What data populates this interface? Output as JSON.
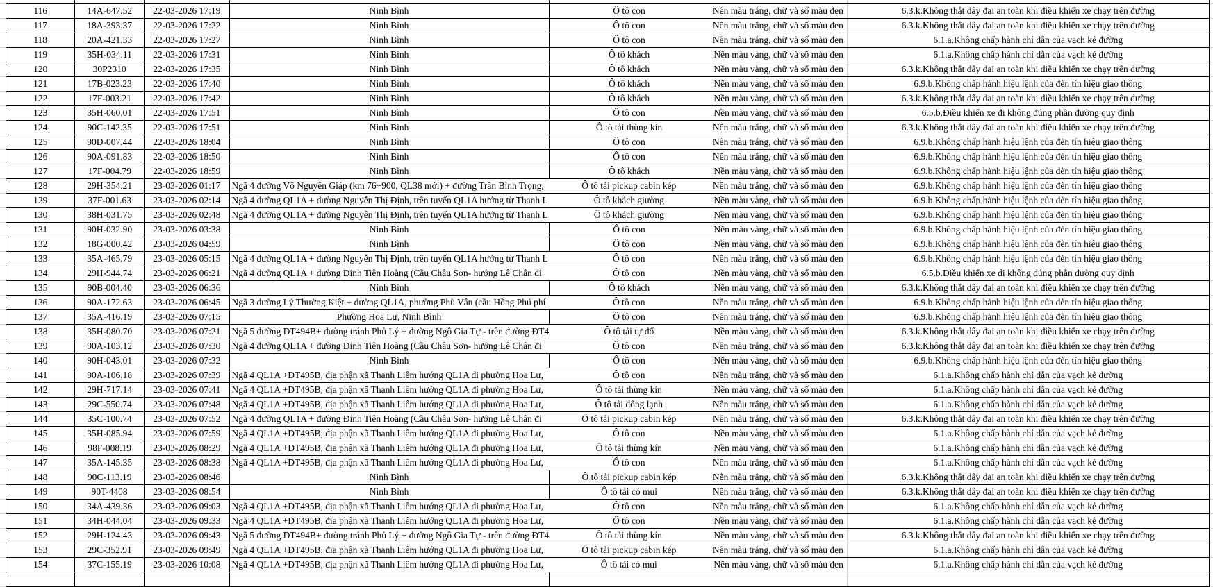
{
  "rows": [
    [
      "116",
      "14A-647.52",
      "22-03-2026 17:19",
      "Ninh Bình",
      "Ô tô con",
      "Nền màu trắng, chữ và số màu đen",
      "6.3.k.Không thắt dây đai an toàn khi điều khiển xe chạy trên đường"
    ],
    [
      "117",
      "18A-393.37",
      "22-03-2026 17:22",
      "Ninh Bình",
      "Ô tô con",
      "Nền màu trắng, chữ và số màu đen",
      "6.3.k.Không thắt dây đai an toàn khi điều khiển xe chạy trên đường"
    ],
    [
      "118",
      "20A-421.33",
      "22-03-2026 17:27",
      "Ninh Bình",
      "Ô tô con",
      "Nền màu trắng, chữ và số màu đen",
      "6.1.a.Không chấp hành chỉ dẫn của vạch kẻ đường"
    ],
    [
      "119",
      "35H-034.11",
      "22-03-2026 17:31",
      "Ninh Bình",
      "Ô tô khách",
      "Nền màu vàng, chữ và số màu đen",
      "6.1.a.Không chấp hành chỉ dẫn của vạch kẻ đường"
    ],
    [
      "120",
      "30P2310",
      "22-03-2026 17:35",
      "Ninh Bình",
      "Ô tô khách",
      "Nền màu vàng, chữ và số màu đen",
      "6.3.k.Không thắt dây đai an toàn khi điều khiển xe chạy trên đường"
    ],
    [
      "121",
      "17B-023.23",
      "22-03-2026 17:40",
      "Ninh Bình",
      "Ô tô khách",
      "Nền màu vàng, chữ và số màu đen",
      "6.9.b.Không chấp hành hiệu lệnh của đèn tín hiệu giao thông"
    ],
    [
      "122",
      "17F-003.21",
      "22-03-2026 17:42",
      "Ninh Bình",
      "Ô tô khách",
      "Nền màu vàng, chữ và số màu đen",
      "6.3.k.Không thắt dây đai an toàn khi điều khiển xe chạy trên đường"
    ],
    [
      "123",
      "35H-060.01",
      "22-03-2026 17:51",
      "Ninh Bình",
      "Ô tô con",
      "Nền màu vàng, chữ và số màu đen",
      "6.5.b.Điều khiển xe đi không đúng phần đường quy định"
    ],
    [
      "124",
      "90C-142.35",
      "22-03-2026 17:51",
      "Ninh Bình",
      "Ô tô tải thùng kín",
      "Nền màu trắng, chữ và số màu đen",
      "6.3.k.Không thắt dây đai an toàn khi điều khiển xe chạy trên đường"
    ],
    [
      "125",
      "90D-007.44",
      "22-03-2026 18:04",
      "Ninh Bình",
      "Ô tô con",
      "Nền màu trắng, chữ và số màu đen",
      "6.9.b.Không chấp hành hiệu lệnh của đèn tín hiệu giao thông"
    ],
    [
      "126",
      "90A-091.83",
      "22-03-2026 18:50",
      "Ninh Bình",
      "Ô tô con",
      "Nền màu trắng, chữ và số màu đen",
      "6.9.b.Không chấp hành hiệu lệnh của đèn tín hiệu giao thông"
    ],
    [
      "127",
      "17F-004.79",
      "22-03-2026 18:59",
      "Ninh Bình",
      "Ô tô khách",
      "Nền màu vàng, chữ và số màu đen",
      "6.9.b.Không chấp hành hiệu lệnh của đèn tín hiệu giao thông"
    ],
    [
      "128",
      "29H-354.21",
      "23-03-2026 01:17",
      "Ngã 4 đường Võ Nguyên Giáp (km 76+900, QL38 mới) + đường Trần Bình Trọng,",
      "Ô tô tải pickup cabin kép",
      "Nền màu trắng, chữ và số màu đen",
      "6.9.b.Không chấp hành hiệu lệnh của đèn tín hiệu giao thông"
    ],
    [
      "129",
      "37F-001.63",
      "23-03-2026 02:14",
      "Ngã 4 đường QL1A + đường Nguyễn Thị Định, trên tuyến QL1A hướng từ Thanh L",
      "Ô tô khách giường",
      "Nền màu vàng, chữ và số màu đen",
      "6.9.b.Không chấp hành hiệu lệnh của đèn tín hiệu giao thông"
    ],
    [
      "130",
      "38H-031.75",
      "23-03-2026 02:48",
      "Ngã 4 đường QL1A + đường Nguyễn Thị Định, trên tuyến QL1A hướng từ Thanh L",
      "Ô tô khách giường",
      "Nền màu vàng, chữ và số màu đen",
      "6.9.b.Không chấp hành hiệu lệnh của đèn tín hiệu giao thông"
    ],
    [
      "131",
      "90H-032.90",
      "23-03-2026 03:38",
      "Ninh Bình",
      "Ô tô con",
      "Nền màu vàng, chữ và số màu đen",
      "6.9.b.Không chấp hành hiệu lệnh của đèn tín hiệu giao thông"
    ],
    [
      "132",
      "18G-000.42",
      "23-03-2026 04:59",
      "Ninh Bình",
      "Ô tô con",
      "Nền màu vàng, chữ và số màu đen",
      "6.9.b.Không chấp hành hiệu lệnh của đèn tín hiệu giao thông"
    ],
    [
      "133",
      "35A-465.79",
      "23-03-2026 05:15",
      "Ngã 4 đường QL1A + đường Nguyễn Thị Định, trên tuyến QL1A hướng từ Thanh L",
      "Ô tô con",
      "Nền màu trắng, chữ và số màu đen",
      "6.9.b.Không chấp hành hiệu lệnh của đèn tín hiệu giao thông"
    ],
    [
      "134",
      "29H-944.74",
      "23-03-2026 06:21",
      "Ngã 4 đường QL1A + đường Đinh Tiên Hoàng (Cầu Châu Sơn- hướng Lê Chân đi",
      "Ô tô con",
      "Nền màu vàng, chữ và số màu đen",
      "6.5.b.Điều khiển xe đi không đúng phần đường quy định"
    ],
    [
      "135",
      "90B-004.40",
      "23-03-2026 06:36",
      "Ninh Bình",
      "Ô tô khách",
      "Nền màu vàng, chữ và số màu đen",
      "6.3.k.Không thắt dây đai an toàn khi điều khiển xe chạy trên đường"
    ],
    [
      "136",
      "90A-172.63",
      "23-03-2026 06:45",
      "Ngã 3 đường Lý Thường Kiệt + đường QL1A, phường Phù Vân (cầu Hồng Phú phí",
      "Ô tô con",
      "Nền màu trắng, chữ và số màu đen",
      "6.9.b.Không chấp hành hiệu lệnh của đèn tín hiệu giao thông"
    ],
    [
      "137",
      "35A-416.19",
      "23-03-2026 07:15",
      "Phường Hoa Lư, Ninh Bình",
      "Ô tô con",
      "Nền màu trắng, chữ và số màu đen",
      "6.9.b.Không chấp hành hiệu lệnh của đèn tín hiệu giao thông"
    ],
    [
      "138",
      "35H-080.70",
      "23-03-2026 07:21",
      "Ngã 5 đường DT494B+ đường tránh Phủ Lý + đường Ngô Gia Tự - trên đường ĐT4",
      "Ô tô tải tự đổ",
      "Nền màu vàng, chữ và số màu đen",
      "6.3.k.Không thắt dây đai an toàn khi điều khiển xe chạy trên đường"
    ],
    [
      "139",
      "90A-103.12",
      "23-03-2026 07:30",
      "Ngã 4 đường QL1A + đường Đinh Tiên Hoàng (Cầu Châu Sơn- hướng Lê Chân đi",
      "Ô tô con",
      "Nền màu trắng, chữ và số màu đen",
      "6.3.k.Không thắt dây đai an toàn khi điều khiển xe chạy trên đường"
    ],
    [
      "140",
      "90H-043.01",
      "23-03-2026 07:32",
      "Ninh Bình",
      "Ô tô con",
      "Nền màu vàng, chữ và số màu đen",
      "6.9.b.Không chấp hành hiệu lệnh của đèn tín hiệu giao thông"
    ],
    [
      "141",
      "90A-106.18",
      "23-03-2026 07:39",
      "Ngã 4 QL1A +DT495B, địa phận xã Thanh Liêm hướng QL1A đi phường Hoa Lư,",
      "Ô tô con",
      "Nền màu trắng, chữ và số màu đen",
      "6.1.a.Không chấp hành chỉ dẫn của vạch kẻ đường"
    ],
    [
      "142",
      "29H-717.14",
      "23-03-2026 07:41",
      "Ngã 4 QL1A +DT495B, địa phận xã Thanh Liêm hướng QL1A đi phường Hoa Lư,",
      "Ô tô tải thùng kín",
      "Nền màu vàng, chữ và số màu đen",
      "6.1.a.Không chấp hành chỉ dẫn của vạch kẻ đường"
    ],
    [
      "143",
      "29C-550.74",
      "23-03-2026 07:48",
      "Ngã 4 QL1A +DT495B, địa phận xã Thanh Liêm hướng QL1A đi phường Hoa Lư,",
      "Ô tô tải đông lạnh",
      "Nền màu trắng, chữ và số màu đen",
      "6.1.a.Không chấp hành chỉ dẫn của vạch kẻ đường"
    ],
    [
      "144",
      "35C-100.74",
      "23-03-2026 07:52",
      "Ngã 4 đường QL1A + đường Đinh Tiên Hoàng (Cầu Châu Sơn- hướng Lê Chân đi",
      "Ô tô tải pickup cabin kép",
      "Nền màu trắng, chữ và số màu đen",
      "6.3.k.Không thắt dây đai an toàn khi điều khiển xe chạy trên đường"
    ],
    [
      "145",
      "35H-085.94",
      "23-03-2026 07:59",
      "Ngã 4 QL1A +DT495B, địa phận xã Thanh Liêm hướng QL1A đi phường Hoa Lư,",
      "Ô tô con",
      "Nền màu vàng, chữ và số màu đen",
      "6.1.a.Không chấp hành chỉ dẫn của vạch kẻ đường"
    ],
    [
      "146",
      "98F-008.19",
      "23-03-2026 08:29",
      "Ngã 4 QL1A +DT495B, địa phận xã Thanh Liêm hướng QL1A đi phường Hoa Lư,",
      "Ô tô tải thùng kín",
      "Nền màu vàng, chữ và số màu đen",
      "6.1.a.Không chấp hành chỉ dẫn của vạch kẻ đường"
    ],
    [
      "147",
      "35A-145.35",
      "23-03-2026 08:38",
      "Ngã 4 QL1A +DT495B, địa phận xã Thanh Liêm hướng QL1A đi phường Hoa Lư,",
      "Ô tô con",
      "Nền màu trắng, chữ và số màu đen",
      "6.1.a.Không chấp hành chỉ dẫn của vạch kẻ đường"
    ],
    [
      "148",
      "90C-113.19",
      "23-03-2026 08:46",
      "Ninh Bình",
      "Ô tô tải pickup cabin kép",
      "Nền màu trắng, chữ và số màu đen",
      "6.3.k.Không thắt dây đai an toàn khi điều khiển xe chạy trên đường"
    ],
    [
      "149",
      "90T-4408",
      "23-03-2026 08:54",
      "Ninh Bình",
      "Ô tô tải có mui",
      "Nền màu trắng, chữ và số màu đen",
      "6.3.k.Không thắt dây đai an toàn khi điều khiển xe chạy trên đường"
    ],
    [
      "150",
      "34A-439.36",
      "23-03-2026 09:03",
      "Ngã 4 QL1A +DT495B, địa phận xã Thanh Liêm hướng QL1A đi phường Hoa Lư,",
      "Ô tô con",
      "Nền màu trắng, chữ và số màu đen",
      "6.1.a.Không chấp hành chỉ dẫn của vạch kẻ đường"
    ],
    [
      "151",
      "34H-044.04",
      "23-03-2026 09:33",
      "Ngã 4 QL1A +DT495B, địa phận xã Thanh Liêm hướng QL1A đi phường Hoa Lư,",
      "Ô tô con",
      "Nền màu vàng, chữ và số màu đen",
      "6.1.a.Không chấp hành chỉ dẫn của vạch kẻ đường"
    ],
    [
      "152",
      "29H-124.43",
      "23-03-2026 09:43",
      "Ngã 5 đường DT494B+ đường tránh Phủ Lý + đường Ngô Gia Tự - trên đường ĐT4",
      "Ô tô tải thùng kín",
      "Nền màu vàng, chữ và số màu đen",
      "6.3.k.Không thắt dây đai an toàn khi điều khiển xe chạy trên đường"
    ],
    [
      "153",
      "29C-352.91",
      "23-03-2026 09:49",
      "Ngã 4 QL1A +DT495B, địa phận xã Thanh Liêm hướng QL1A đi phường Hoa Lư,",
      "Ô tô tải pickup cabin kép",
      "Nền màu trắng, chữ và số màu đen",
      "6.1.a.Không chấp hành chỉ dẫn của vạch kẻ đường"
    ],
    [
      "154",
      "37C-155.19",
      "23-03-2026 10:08",
      "Ngã 4 QL1A +DT495B, địa phận xã Thanh Liêm hướng QL1A đi phường Hoa Lư,",
      "Ô tô tải có mui",
      "Nền màu vàng, chữ và số màu đen",
      "6.1.a.Không chấp hành chỉ dẫn của vạch kẻ đường"
    ]
  ]
}
